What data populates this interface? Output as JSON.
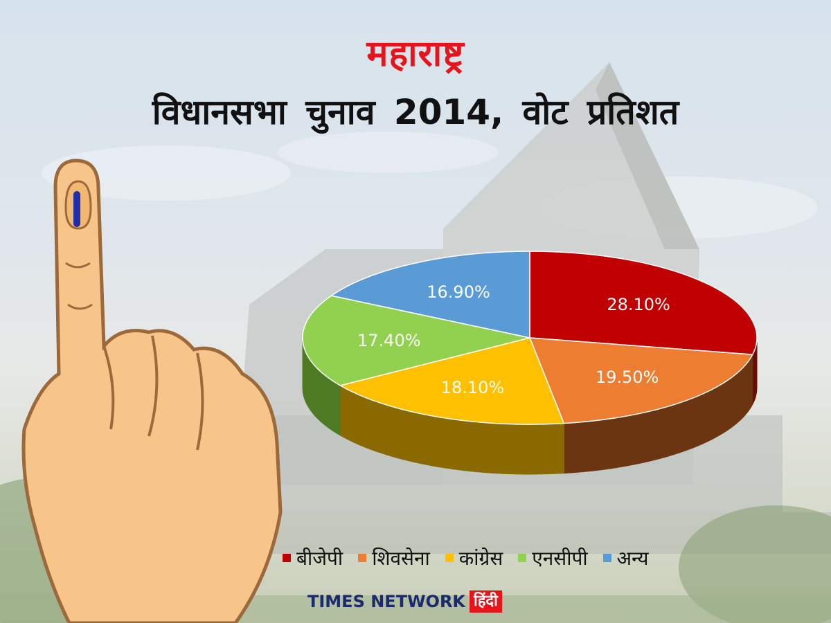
{
  "header": {
    "title": "महाराष्ट्र",
    "subtitle": "विधानसभा चुनाव 2014, वोट प्रतिशत"
  },
  "footer": {
    "brand": "TIMES NETWORK",
    "brand_hindi": "हिंदी"
  },
  "chart_data": {
    "type": "pie",
    "title": "विधानसभा चुनाव 2014, वोट प्रतिशत",
    "legend_position": "bottom",
    "slices": [
      {
        "name": "बीजेपी",
        "value": 28.1,
        "label": "28.10%",
        "color": "#c00000",
        "side": "#6b0d07"
      },
      {
        "name": "शिवसेना",
        "value": 19.5,
        "label": "19.50%",
        "color": "#ed7d31",
        "side": "#6b3512"
      },
      {
        "name": "कांग्रेस",
        "value": 18.1,
        "label": "18.10%",
        "color": "#ffc000",
        "side": "#8a6a00"
      },
      {
        "name": "एनसीपी",
        "value": 17.4,
        "label": "17.40%",
        "color": "#92d050",
        "side": "#4d7a23"
      },
      {
        "name": "अन्य",
        "value": 16.9,
        "label": "16.90%",
        "color": "#5b9bd5",
        "side": "#2e5a85"
      }
    ]
  }
}
